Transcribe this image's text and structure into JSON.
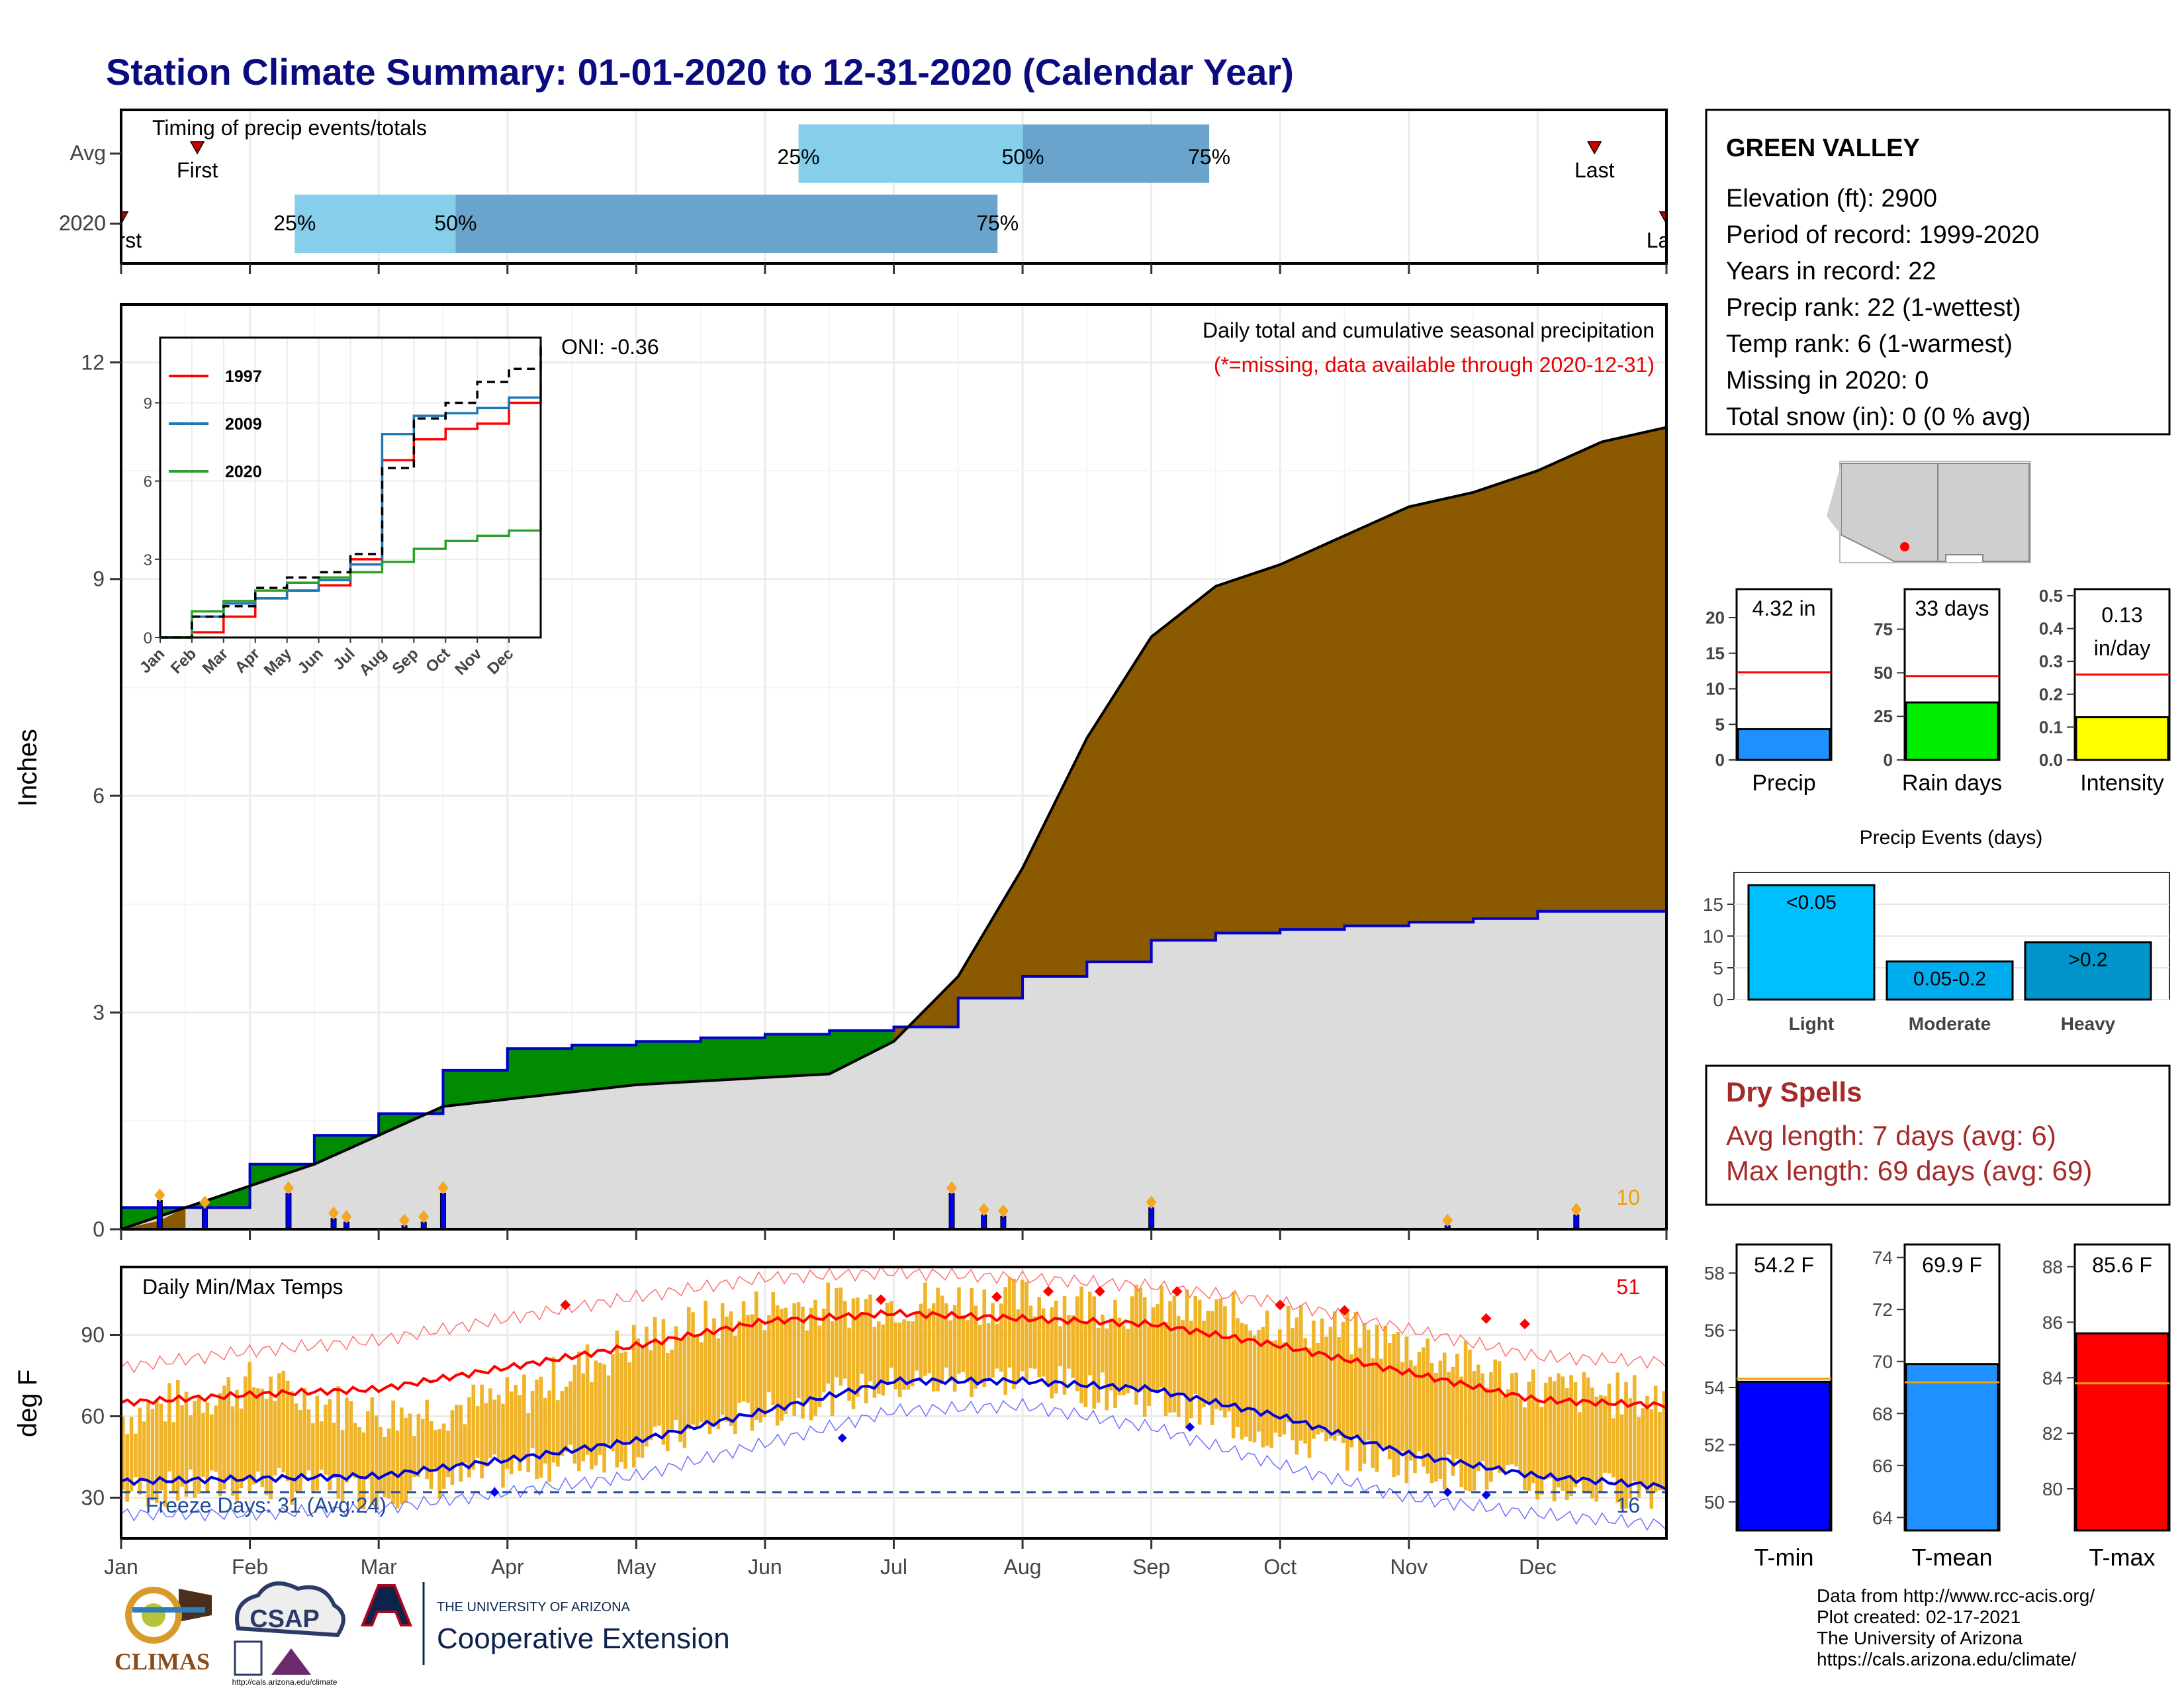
{
  "title": "Station Climate Summary: 01-01-2020 to 12-31-2020 (Calendar Year)",
  "colors": {
    "title": "#0b0b80",
    "q_light": "#87ceeb",
    "q_dark": "#6aa3cb",
    "cumulative_total": "#8b5a00",
    "cumulative_deficit": "#008b00",
    "climo": "#dcdcdc",
    "avg_line": "#0000cc",
    "temp_bar": "#f0b429",
    "tmax_avg": "#ff0000",
    "tmin_avg": "#0000dd",
    "dry": "#a52a2a"
  },
  "timing": {
    "title": "Timing of precip events/totals",
    "rows": [
      {
        "label": "Avg",
        "first": "First",
        "last": "Last",
        "q25": "25%",
        "q50": "50%",
        "q75": "75%"
      },
      {
        "label": "2020",
        "first": "First",
        "last": "Last",
        "q25": "25%",
        "q50": "50%",
        "q75": "75%"
      }
    ]
  },
  "precip_panel": {
    "ylabel": "Inches",
    "title": "Daily total and cumulative seasonal precipitation",
    "subtitle": "(*=missing, data available through 2020-12-31)",
    "oni": "ONI: -0.36",
    "corner_count": "10",
    "yticks": [
      "0",
      "3",
      "6",
      "9",
      "12"
    ]
  },
  "inset": {
    "legend": [
      "1997",
      "2009",
      "2020"
    ],
    "legend_colors": [
      "#ff0000",
      "#1f77b4",
      "#2ca02c"
    ],
    "yticks": [
      "0",
      "3",
      "6",
      "9"
    ],
    "xticks": [
      "Jan",
      "Feb",
      "Mar",
      "Apr",
      "May",
      "Jun",
      "Jul",
      "Aug",
      "Sep",
      "Oct",
      "Nov",
      "Dec"
    ]
  },
  "temp_panel": {
    "ylabel": "deg F",
    "title": "Daily Min/Max Temps",
    "count_hot": "51",
    "freeze_text": "Freeze Days: 31 (Avg:24)",
    "count_cold": "16",
    "yticks": [
      "30",
      "60",
      "90"
    ]
  },
  "months": [
    "Jan",
    "Feb",
    "Mar",
    "Apr",
    "May",
    "Jun",
    "Jul",
    "Aug",
    "Sep",
    "Oct",
    "Nov",
    "Dec"
  ],
  "station": {
    "name": "GREEN VALLEY",
    "lines": [
      "Elevation (ft): 2900",
      "Period of record: 1999-2020",
      "Years in record: 22",
      "Precip rank: 22 (1-wettest)",
      "Temp rank: 6 (1-warmest)",
      "Missing in 2020: 0",
      "Total snow (in): 0 (0 % avg)"
    ]
  },
  "summary_bars": [
    {
      "label": "Precip",
      "value_text": "4.32 in",
      "yticks": [
        "0",
        "5",
        "10",
        "15",
        "20"
      ]
    },
    {
      "label": "Rain days",
      "value_text": "33 days",
      "yticks": [
        "0",
        "25",
        "50",
        "75"
      ]
    },
    {
      "label": "Intensity",
      "value_text": "0.13",
      "value_text2": "in/day",
      "yticks": [
        "0.0",
        "0.1",
        "0.2",
        "0.3",
        "0.4",
        "0.5"
      ]
    }
  ],
  "events": {
    "title": "Precip Events (days)",
    "categories": [
      "Light",
      "Moderate",
      "Heavy"
    ],
    "bar_labels": [
      "<0.05",
      "0.05-0.2",
      ">0.2"
    ],
    "yticks": [
      "0",
      "5",
      "10",
      "15"
    ]
  },
  "dry_spells": {
    "title": "Dry Spells",
    "avg": "Avg length: 7 days (avg: 6)",
    "max": "Max length: 69 days (avg: 69)"
  },
  "temp_bars": [
    {
      "label": "T-min",
      "value_text": "54.2 F",
      "yticks": [
        "50",
        "52",
        "54",
        "56",
        "58"
      ]
    },
    {
      "label": "T-mean",
      "value_text": "69.9 F",
      "yticks": [
        "64",
        "66",
        "68",
        "70",
        "72",
        "74"
      ]
    },
    {
      "label": "T-max",
      "value_text": "85.6 F",
      "yticks": [
        "80",
        "82",
        "84",
        "86",
        "88"
      ]
    }
  ],
  "footer": {
    "lines": [
      "Data from http://www.rcc-acis.org/",
      "Plot created: 02-17-2021",
      "The University of Arizona",
      "https://cals.arizona.edu/climate/"
    ],
    "logo_climas": "CLIMAS",
    "logo_csap": "CSAP",
    "logo_csap_url": "http://cals.arizona.edu/climate",
    "ua_top": "THE UNIVERSITY OF ARIZONA",
    "ua_main": "Cooperative Extension"
  },
  "chart_data": [
    {
      "type": "bar",
      "name": "timing",
      "rows": [
        "Avg",
        "2020"
      ],
      "first_doy": [
        19,
        1
      ],
      "last_doy": [
        349,
        366
      ],
      "q25_doy": [
        161,
        42
      ],
      "q50_doy": [
        214,
        80
      ],
      "q75_doy": [
        258,
        208
      ]
    },
    {
      "type": "area",
      "name": "cumulative_precip",
      "x_month": [
        0,
        0.5,
        1.0,
        1.5,
        2.0,
        2.5,
        3.0,
        3.5,
        4.0,
        4.5,
        5.0,
        5.5,
        6.0,
        6.5,
        7.0,
        7.5,
        8.0,
        8.5,
        9.0,
        9.5,
        10.0,
        10.5,
        11.0,
        11.5,
        12.0
      ],
      "avg_cumulative": [
        0.3,
        0.3,
        0.9,
        1.3,
        1.6,
        2.2,
        2.5,
        2.55,
        2.6,
        2.65,
        2.7,
        2.75,
        2.8,
        3.2,
        3.5,
        3.7,
        4.0,
        4.1,
        4.15,
        4.2,
        4.25,
        4.3,
        4.4,
        4.4,
        4.4
      ],
      "cumulative_2020": [
        0.0,
        0.3,
        0.6,
        0.9,
        1.3,
        1.7,
        1.8,
        1.9,
        2.0,
        2.05,
        2.1,
        2.15,
        2.6,
        3.5,
        5.0,
        6.8,
        8.2,
        8.9,
        9.2,
        9.6,
        10.0,
        10.2,
        10.5,
        10.9,
        11.1
      ],
      "ylim": [
        0,
        12
      ],
      "daily_bars": [
        [
          0.3,
          0.4
        ],
        [
          0.65,
          0.3
        ],
        [
          1.3,
          0.5
        ],
        [
          1.65,
          0.15
        ],
        [
          1.75,
          0.1
        ],
        [
          2.2,
          0.05
        ],
        [
          2.35,
          0.1
        ],
        [
          2.5,
          0.5
        ],
        [
          6.45,
          0.5
        ],
        [
          6.7,
          0.2
        ],
        [
          6.85,
          0.18
        ],
        [
          8.0,
          0.3
        ],
        [
          10.3,
          0.05
        ],
        [
          11.3,
          0.2
        ]
      ]
    },
    {
      "type": "line",
      "name": "inset_analogs",
      "x_month": [
        0,
        1,
        2,
        3,
        4,
        5,
        6,
        7,
        8,
        9,
        10,
        11,
        12
      ],
      "series": [
        {
          "name": "1997",
          "values": [
            0,
            0.2,
            0.8,
            1.5,
            1.8,
            2.0,
            3.0,
            6.8,
            7.6,
            8.0,
            8.2,
            9.0,
            11.2
          ]
        },
        {
          "name": "2009",
          "values": [
            0,
            0.8,
            1.3,
            1.5,
            1.8,
            2.2,
            2.8,
            7.8,
            8.5,
            8.6,
            8.8,
            9.2,
            9.8
          ]
        },
        {
          "name": "2020",
          "values": [
            0,
            1.0,
            1.4,
            1.8,
            2.1,
            2.3,
            2.5,
            2.9,
            3.4,
            3.7,
            3.9,
            4.1,
            4.5
          ]
        },
        {
          "name": "avg",
          "values": [
            0,
            0.8,
            1.2,
            1.9,
            2.3,
            2.5,
            3.2,
            6.5,
            8.4,
            9.0,
            9.8,
            10.3,
            11.2
          ]
        }
      ],
      "ylim": [
        0,
        11.5
      ]
    },
    {
      "type": "line",
      "name": "daily_temps",
      "x_month": [
        0,
        1,
        2,
        3,
        4,
        5,
        6,
        7,
        8,
        9,
        10,
        11,
        12
      ],
      "tmax_avg": [
        65,
        68,
        70,
        78,
        86,
        95,
        98,
        96,
        94,
        86,
        76,
        66,
        64
      ],
      "tmin_avg": [
        36,
        37,
        38,
        44,
        51,
        62,
        73,
        73,
        70,
        60,
        46,
        38,
        34
      ],
      "tmax_record": [
        78,
        84,
        88,
        96,
        104,
        111,
        113,
        111,
        108,
        102,
        92,
        82,
        80
      ],
      "tmin_record": [
        24,
        24,
        26,
        32,
        38,
        50,
        62,
        64,
        56,
        42,
        30,
        24,
        20
      ],
      "tmax_2020": [
        60,
        72,
        60,
        66,
        88,
        100,
        102,
        103,
        100,
        95,
        86,
        70,
        66
      ],
      "tmin_2020": [
        32,
        35,
        32,
        40,
        48,
        62,
        72,
        74,
        66,
        52,
        42,
        34,
        32
      ],
      "freeze_line": 32,
      "ylim": [
        15,
        115
      ]
    },
    {
      "type": "bar",
      "name": "precip_total",
      "value": 4.32,
      "average": 12.3,
      "ylim": [
        0,
        24
      ]
    },
    {
      "type": "bar",
      "name": "rain_days",
      "value": 33,
      "average": 48,
      "ylim": [
        0,
        98
      ]
    },
    {
      "type": "bar",
      "name": "intensity",
      "value": 0.13,
      "average": 0.26,
      "ylim": [
        0,
        0.52
      ]
    },
    {
      "type": "bar",
      "name": "precip_events",
      "categories": [
        "Light",
        "Moderate",
        "Heavy"
      ],
      "values": [
        18,
        6,
        9
      ],
      "ylim": [
        0,
        20
      ]
    },
    {
      "type": "bar",
      "name": "tmin_2020",
      "value": 54.2,
      "average": 54.3,
      "ylim": [
        49,
        59
      ]
    },
    {
      "type": "bar",
      "name": "tmean_2020",
      "value": 69.9,
      "average": 69.2,
      "ylim": [
        63.5,
        74.5
      ]
    },
    {
      "type": "bar",
      "name": "tmax_2020",
      "value": 85.6,
      "average": 83.8,
      "ylim": [
        78.5,
        88.8
      ]
    }
  ]
}
